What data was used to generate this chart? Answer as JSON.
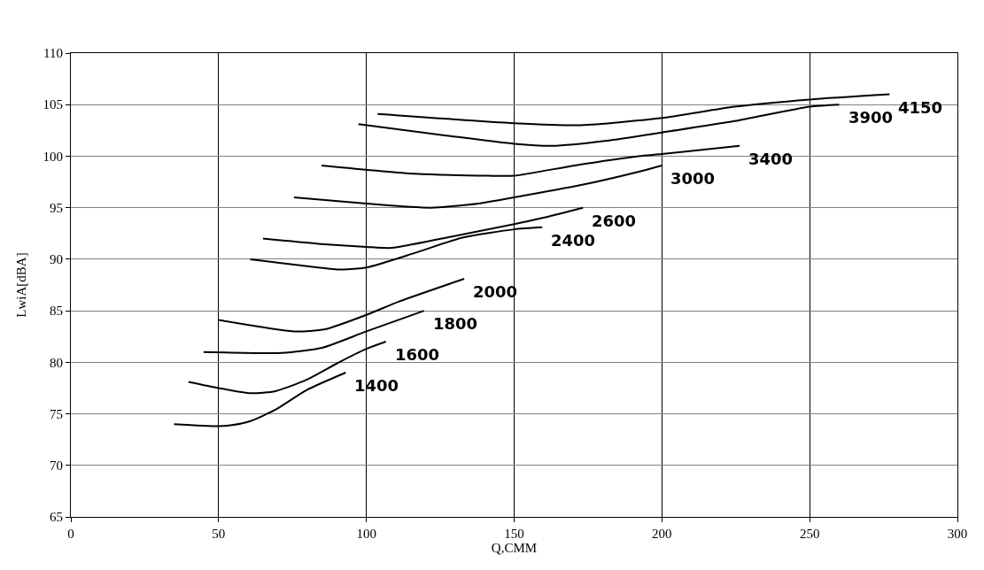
{
  "chart_data": {
    "type": "line",
    "xlabel": "Q,CMM",
    "ylabel": "LwiA[dBA]",
    "xlim": [
      0,
      300
    ],
    "xticks": [
      0,
      50,
      100,
      150,
      200,
      250,
      300
    ],
    "ylim": [
      65,
      110
    ],
    "yticks": [
      65,
      70,
      75,
      80,
      85,
      90,
      95,
      100,
      105,
      110
    ],
    "grid": true,
    "legend": false,
    "marker": "none",
    "line_style": "solid",
    "series": [
      {
        "name": "1400",
        "color": "#000000",
        "x": [
          34.9,
          50,
          54.5,
          60.8,
          69.2,
          79.7,
          93
        ],
        "values": [
          74.0,
          73.8,
          73.9,
          74.3,
          75.4,
          77.3,
          79.0
        ]
      },
      {
        "name": "1600",
        "color": "#000000",
        "x": [
          39.8,
          50,
          60.8,
          69.2,
          79.7,
          90.1,
          100,
          106.6
        ],
        "values": [
          78.1,
          77.5,
          77.0,
          77.2,
          78.3,
          79.9,
          81.3,
          82.0
        ]
      },
      {
        "name": "1800",
        "color": "#000000",
        "x": [
          44.9,
          71.3,
          84.9,
          100,
          119.5
        ],
        "values": [
          81.0,
          80.9,
          81.4,
          83.0,
          85.0
        ]
      },
      {
        "name": "2000",
        "color": "#000000",
        "x": [
          50,
          75.5,
          86,
          100,
          111.1,
          133.1
        ],
        "values": [
          84.1,
          83.0,
          83.2,
          84.6,
          85.9,
          88.1
        ]
      },
      {
        "name": "2400",
        "color": "#000000",
        "x": [
          60.7,
          83.7,
          90.2,
          100,
          116.3,
          132.5,
          150,
          159.5
        ],
        "values": [
          90.0,
          89.2,
          89.0,
          89.2,
          90.6,
          92.1,
          92.9,
          93.1
        ]
      },
      {
        "name": "2600",
        "color": "#000000",
        "x": [
          65,
          83.7,
          100,
          108.7,
          127.1,
          150,
          159.5,
          173.3
        ],
        "values": [
          92.0,
          91.5,
          91.2,
          91.1,
          92.1,
          93.4,
          94.0,
          95.0
        ]
      },
      {
        "name": "3000",
        "color": "#000000",
        "x": [
          75.5,
          100,
          121.7,
          137.9,
          150,
          172.6,
          192.2,
          200
        ],
        "values": [
          96.0,
          95.4,
          95.0,
          95.4,
          96.0,
          97.2,
          98.5,
          99.1
        ]
      },
      {
        "name": "3400",
        "color": "#000000",
        "x": [
          84.8,
          116.3,
          141.2,
          150,
          170.5,
          192.2,
          200,
          226.3
        ],
        "values": [
          99.1,
          98.3,
          98.1,
          98.1,
          99.1,
          100.0,
          100.2,
          101.0
        ]
      },
      {
        "name": "3900",
        "color": "#000000",
        "x": [
          97.3,
          127.1,
          150,
          162.9,
          181.3,
          200,
          224.6,
          250,
          260
        ],
        "values": [
          103.1,
          102.0,
          101.2,
          101.0,
          101.5,
          102.3,
          103.4,
          104.8,
          105.0
        ]
      },
      {
        "name": "4150",
        "color": "#000000",
        "x": [
          103.8,
          150,
          172.6,
          200,
          224.6,
          250,
          277
        ],
        "values": [
          104.1,
          103.2,
          103.0,
          103.7,
          104.8,
          105.5,
          106.0
        ]
      }
    ]
  }
}
